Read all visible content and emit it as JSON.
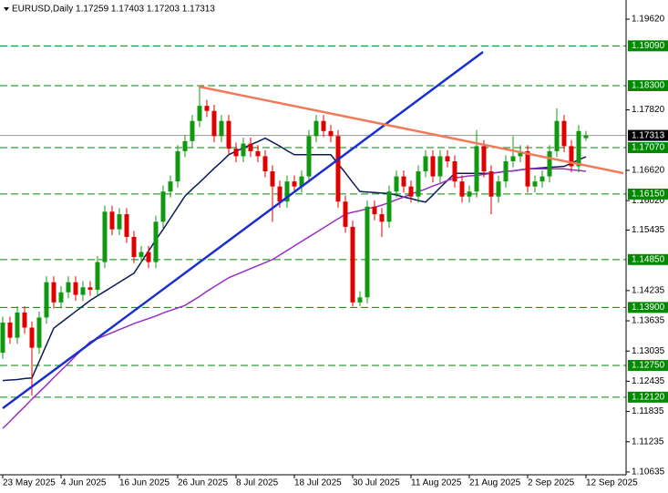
{
  "chart_data": {
    "type": "candlestick",
    "title": "EURUSD,Daily  1.17259 1.17403 1.17203 1.17313",
    "categories": [
      "23 May 2025",
      null,
      null,
      null,
      null,
      null,
      null,
      null,
      "4 Jun 2025",
      null,
      null,
      null,
      null,
      null,
      null,
      null,
      "16 Jun 2025",
      null,
      null,
      null,
      null,
      null,
      null,
      null,
      "26 Jun 2025",
      null,
      null,
      null,
      null,
      null,
      null,
      null,
      "8 Jul 2025",
      null,
      null,
      null,
      null,
      null,
      null,
      null,
      "18 Jul 2025",
      null,
      null,
      null,
      null,
      null,
      null,
      null,
      "30 Jul 2025",
      null,
      null,
      null,
      null,
      null,
      null,
      null,
      "11 Aug 2025",
      null,
      null,
      null,
      null,
      null,
      null,
      null,
      "21 Aug 2025",
      null,
      null,
      null,
      null,
      null,
      null,
      null,
      "2 Sep 2025",
      null,
      null,
      null,
      null,
      null,
      null,
      null,
      "12 Sep 2025"
    ],
    "open": [
      1.13,
      1.136,
      1.133,
      1.138,
      1.135,
      1.131,
      1.137,
      1.144,
      1.14,
      1.142,
      1.144,
      1.1415,
      1.143,
      1.1425,
      1.148,
      1.158,
      1.1545,
      1.1575,
      1.153,
      1.149,
      1.15,
      1.148,
      1.156,
      1.162,
      1.164,
      1.17,
      1.172,
      1.176,
      1.179,
      1.178,
      1.173,
      1.176,
      1.1705,
      1.169,
      1.1715,
      1.17,
      1.169,
      1.166,
      1.163,
      1.16,
      1.164,
      1.163,
      1.165,
      1.173,
      1.176,
      1.174,
      1.173,
      1.16,
      1.155,
      1.14,
      1.141,
      1.159,
      1.1575,
      1.156,
      1.162,
      1.165,
      1.163,
      1.161,
      1.166,
      1.169,
      1.165,
      1.169,
      1.168,
      1.164,
      1.161,
      1.162,
      1.171,
      1.166,
      1.161,
      1.164,
      1.168,
      1.169,
      1.17,
      1.163,
      1.164,
      1.165,
      1.17,
      1.176,
      1.171,
      1.167,
      1.17259
    ],
    "high": [
      1.1372,
      1.1372,
      1.1392,
      1.1392,
      1.1362,
      1.1382,
      1.1452,
      1.1452,
      1.1432,
      1.1452,
      1.1452,
      1.1442,
      1.1442,
      1.1492,
      1.1592,
      1.1592,
      1.1587,
      1.1587,
      1.1542,
      1.1512,
      1.1512,
      1.1572,
      1.1632,
      1.1652,
      1.1712,
      1.1732,
      1.1772,
      1.183,
      1.1802,
      1.1792,
      1.1772,
      1.1772,
      1.1717,
      1.1727,
      1.1727,
      1.1712,
      1.1702,
      1.1672,
      1.1642,
      1.1652,
      1.1652,
      1.1662,
      1.1742,
      1.1772,
      1.1772,
      1.1752,
      1.1742,
      1.1612,
      1.1562,
      1.1422,
      1.1602,
      1.1602,
      1.1587,
      1.1632,
      1.1662,
      1.1662,
      1.1642,
      1.1672,
      1.1702,
      1.1702,
      1.1702,
      1.1702,
      1.1692,
      1.1652,
      1.1632,
      1.1742,
      1.1722,
      1.1672,
      1.1652,
      1.1692,
      1.173,
      1.1712,
      1.1712,
      1.1652,
      1.1662,
      1.1712,
      1.1785,
      1.1772,
      1.1722,
      1.1752,
      1.17403
    ],
    "low": [
      1.1288,
      1.1318,
      1.1318,
      1.1338,
      1.1215,
      1.1298,
      1.1358,
      1.1388,
      1.1388,
      1.1408,
      1.1403,
      1.1403,
      1.1413,
      1.1413,
      1.1468,
      1.1533,
      1.1533,
      1.1518,
      1.1478,
      1.1478,
      1.1468,
      1.1468,
      1.1548,
      1.1608,
      1.1628,
      1.1688,
      1.1708,
      1.1748,
      1.1768,
      1.1718,
      1.1718,
      1.1693,
      1.1678,
      1.1678,
      1.1688,
      1.1678,
      1.1648,
      1.156,
      1.1588,
      1.1588,
      1.1618,
      1.1618,
      1.1638,
      1.1718,
      1.1728,
      1.1718,
      1.1588,
      1.1538,
      1.1392,
      1.1392,
      1.1398,
      1.1563,
      1.153,
      1.1548,
      1.1608,
      1.1618,
      1.1598,
      1.1598,
      1.1648,
      1.1638,
      1.1638,
      1.1668,
      1.1628,
      1.1598,
      1.1598,
      1.1608,
      1.1648,
      1.1575,
      1.1598,
      1.1628,
      1.1668,
      1.1678,
      1.1618,
      1.1618,
      1.1628,
      1.1638,
      1.1688,
      1.1698,
      1.1658,
      1.1658,
      1.17203
    ],
    "close": [
      1.136,
      1.133,
      1.138,
      1.135,
      1.131,
      1.137,
      1.144,
      1.14,
      1.142,
      1.144,
      1.1415,
      1.143,
      1.1425,
      1.148,
      1.158,
      1.1545,
      1.1575,
      1.153,
      1.149,
      1.15,
      1.148,
      1.156,
      1.162,
      1.164,
      1.17,
      1.172,
      1.176,
      1.179,
      1.178,
      1.173,
      1.176,
      1.1705,
      1.169,
      1.1715,
      1.17,
      1.169,
      1.166,
      1.163,
      1.16,
      1.164,
      1.163,
      1.165,
      1.173,
      1.176,
      1.174,
      1.173,
      1.16,
      1.155,
      1.14,
      1.141,
      1.159,
      1.1575,
      1.156,
      1.162,
      1.165,
      1.163,
      1.161,
      1.166,
      1.169,
      1.165,
      1.169,
      1.168,
      1.164,
      1.161,
      1.162,
      1.171,
      1.166,
      1.161,
      1.164,
      1.168,
      1.169,
      1.17,
      1.163,
      1.164,
      1.165,
      1.17,
      1.176,
      1.171,
      1.167,
      1.174,
      1.17313
    ],
    "up_color": "#119a11",
    "down_color": "#e00000",
    "overlays": [
      {
        "color": "#0b1a5a",
        "values": [
          1.1245,
          1.1246,
          1.1247,
          1.1249,
          1.125,
          1.1283,
          1.1316,
          1.1349,
          1.136,
          1.1371,
          1.1382,
          1.1393,
          1.1404,
          1.1413,
          1.1422,
          1.1431,
          1.144,
          1.1449,
          1.1458,
          1.148,
          1.1502,
          1.1524,
          1.1545,
          1.1567,
          1.1589,
          1.1611,
          1.1625,
          1.1638,
          1.1652,
          1.1666,
          1.1679,
          1.1693,
          1.17,
          1.1706,
          1.1713,
          1.1719,
          1.1726,
          1.1718,
          1.171,
          1.1701,
          1.1693,
          1.1693,
          1.1693,
          1.1693,
          1.1693,
          1.1693,
          1.1675,
          1.1657,
          1.1638,
          1.162,
          1.1619,
          1.1618,
          1.1617,
          1.1616,
          1.1613,
          1.1609,
          1.1606,
          1.1602,
          1.1599,
          1.1613,
          1.1628,
          1.1642,
          1.1656,
          1.1656,
          1.1656,
          1.1656,
          1.1656,
          1.1656,
          1.1658,
          1.166,
          1.1661,
          1.1663,
          1.1665,
          1.1666,
          1.1667,
          1.1668,
          1.1669,
          1.167,
          1.1676,
          1.1683,
          1.1689
        ]
      },
      {
        "color": "#9a2fc8",
        "values": [
          1.115,
          1.1164,
          1.1179,
          1.1193,
          1.1208,
          1.1222,
          1.1236,
          1.1251,
          1.1265,
          1.1279,
          1.1294,
          1.1308,
          1.1322,
          1.1328,
          1.1334,
          1.134,
          1.1346,
          1.1352,
          1.1358,
          1.1363,
          1.1368,
          1.1373,
          1.1379,
          1.1384,
          1.1389,
          1.1394,
          1.1403,
          1.1412,
          1.1422,
          1.1431,
          1.144,
          1.1449,
          1.1455,
          1.1461,
          1.1467,
          1.1473,
          1.1479,
          1.1485,
          1.1494,
          1.1503,
          1.1512,
          1.1521,
          1.153,
          1.1539,
          1.1548,
          1.1557,
          1.1566,
          1.1575,
          1.1579,
          1.1582,
          1.1586,
          1.1589,
          1.1593,
          1.1598,
          1.1604,
          1.1609,
          1.1615,
          1.162,
          1.1625,
          1.1631,
          1.1636,
          1.1642,
          1.1647,
          1.1649,
          1.1651,
          1.1652,
          1.1654,
          1.1656,
          1.1658,
          1.166,
          1.1661,
          1.1663,
          1.1665,
          1.1665,
          1.1665,
          1.1665,
          1.1665,
          1.1665,
          1.1663,
          1.1662,
          1.166
        ]
      }
    ],
    "ylim": [
      1.1058,
      1.2
    ],
    "yticks": [
      {
        "value": 1.1962,
        "label": "1.19620"
      },
      {
        "value": 1.1782,
        "label": "1.17820"
      },
      {
        "value": 1.1662,
        "label": "1.16620"
      },
      {
        "value": 1.1602,
        "label": "1.16020"
      },
      {
        "value": 1.15435,
        "label": "1.15435"
      },
      {
        "value": 1.14235,
        "label": "1.14235"
      },
      {
        "value": 1.13635,
        "label": "1.13635"
      },
      {
        "value": 1.13035,
        "label": "1.13035"
      },
      {
        "value": 1.12435,
        "label": "1.12435"
      },
      {
        "value": 1.11835,
        "label": "1.11835"
      },
      {
        "value": 1.11235,
        "label": "1.11235"
      },
      {
        "value": 1.10635,
        "label": "1.10635"
      }
    ],
    "levels": [
      {
        "value": 1.1909,
        "label": "1.19090"
      },
      {
        "value": 1.183,
        "label": "1.18300"
      },
      {
        "value": 1.1707,
        "label": "1.17070"
      },
      {
        "value": 1.1615,
        "label": "1.16150"
      },
      {
        "value": 1.1485,
        "label": "1.14850"
      },
      {
        "value": 1.139,
        "label": "1.13900"
      },
      {
        "value": 1.1275,
        "label": "1.12750"
      },
      {
        "value": 1.1212,
        "label": "1.12120"
      }
    ],
    "level_color": "#008a00",
    "current_price": {
      "value": 1.17313,
      "label": "1.17313"
    },
    "grid": false
  }
}
